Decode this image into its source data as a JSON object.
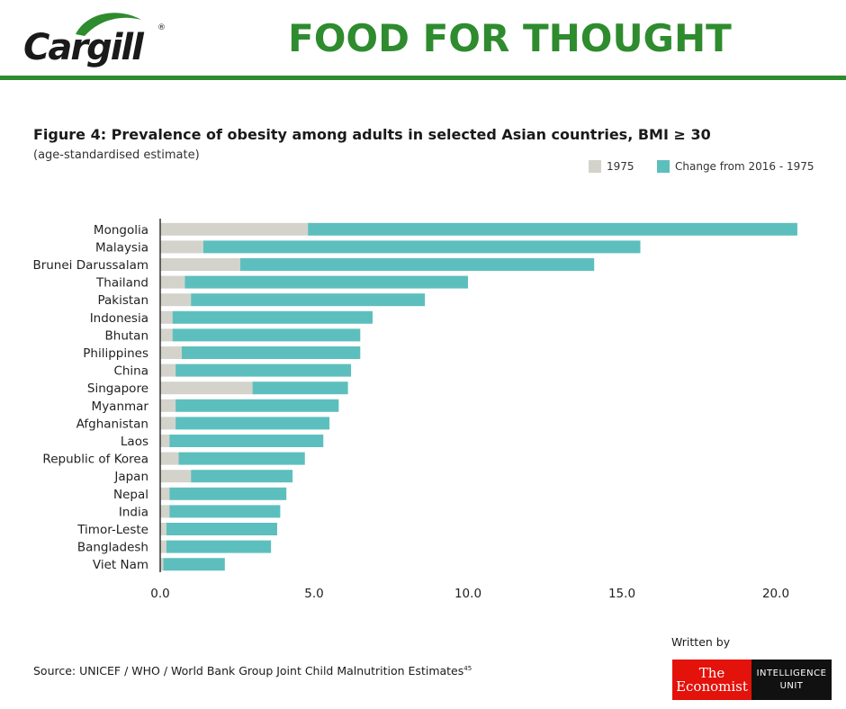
{
  "header": {
    "logo_text": "Cargill",
    "logo_reg": "®",
    "title": "FOOD FOR THOUGHT",
    "brand_green": "#2e8b2e"
  },
  "figure": {
    "title": "Figure 4: Prevalence of obesity among adults in selected Asian countries, BMI ≥ 30",
    "subtitle": "(age-standardised estimate)"
  },
  "legend": {
    "items": [
      {
        "label": "1975",
        "color": "#d3d3cc"
      },
      {
        "label": "Change from 2016 - 1975",
        "color": "#5dbfbd"
      }
    ]
  },
  "chart_data": {
    "type": "bar",
    "orientation": "horizontal",
    "stacked": true,
    "categories": [
      "Mongolia",
      "Malaysia",
      "Brunei Darussalam",
      "Thailand",
      "Pakistan",
      "Indonesia",
      "Bhutan",
      "Philippines",
      "China",
      "Singapore",
      "Myanmar",
      "Afghanistan",
      "Laos",
      "Republic of Korea",
      "Japan",
      "Nepal",
      "India",
      "Timor-Leste",
      "Bangladesh",
      "Viet Nam"
    ],
    "series": [
      {
        "name": "1975",
        "color": "#d3d3cc",
        "values": [
          4.8,
          1.4,
          2.6,
          0.8,
          1.0,
          0.4,
          0.4,
          0.7,
          0.5,
          3.0,
          0.5,
          0.5,
          0.3,
          0.6,
          1.0,
          0.3,
          0.3,
          0.2,
          0.2,
          0.1
        ]
      },
      {
        "name": "Change from 2016 - 1975",
        "color": "#5dbfbd",
        "values": [
          15.9,
          14.2,
          11.5,
          9.2,
          7.6,
          6.5,
          6.1,
          5.8,
          5.7,
          3.1,
          5.3,
          5.0,
          5.0,
          4.1,
          3.3,
          3.8,
          3.6,
          3.6,
          3.4,
          2.0
        ]
      }
    ],
    "xticks": [
      "0.0",
      "5.0",
      "10.0",
      "15.0",
      "20.0"
    ],
    "xlim": [
      0,
      20.8
    ],
    "grid": false,
    "legend_position": "top-right"
  },
  "footer": {
    "source": "Source: UNICEF / WHO / World Bank Group Joint Child Malnutrition Estimates",
    "source_note": "45",
    "written_by": "Written by",
    "economist_line1": "The",
    "economist_line2": "Economist",
    "unit_line1": "INTELLIGENCE",
    "unit_line2": "UNIT"
  }
}
